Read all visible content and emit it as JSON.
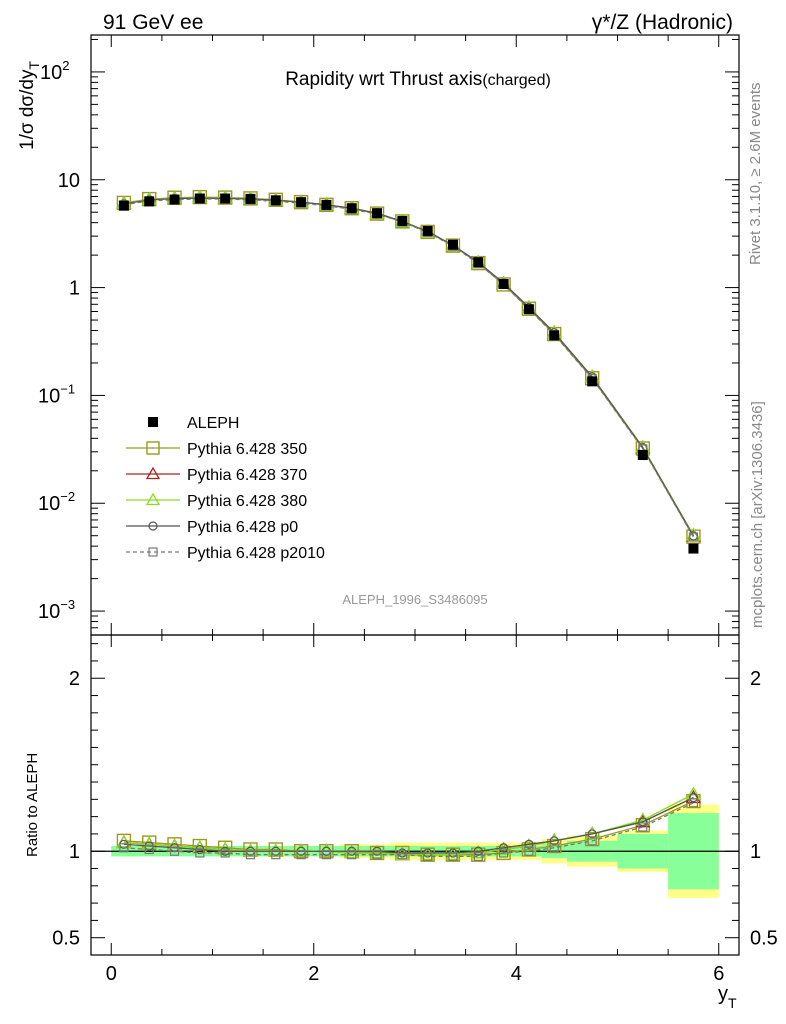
{
  "header": {
    "left": "91 GeV ee",
    "right": "γ*/Z (Hadronic)"
  },
  "side": {
    "rivet": "Rivet 3.1.10, ≥ 2.6M events",
    "mcplots": "mcplots.cern.ch [arXiv:1306.3436]"
  },
  "chart_data": {
    "type": "line",
    "title": "Rapidity wrt Thrust axis",
    "title_sub": "(charged)",
    "watermark": "ALEPH_1996_S3486095",
    "xlabel": "y",
    "xlabel_sub": "T",
    "ylabel": "1/σ dσ/dy",
    "ylabel_sub": "T",
    "ratio_ylabel": "Ratio to ALEPH",
    "xlim": [
      -0.2,
      6.2
    ],
    "ylim": [
      0.0006,
      220
    ],
    "yscale": "log",
    "ratio_ylim": [
      0.4,
      2.25
    ],
    "xticks": [
      "0",
      "2",
      "4",
      "6"
    ],
    "xtick_values": [
      0,
      2,
      4,
      6
    ],
    "yticks_main": [
      {
        "v": 0.001,
        "base": "10",
        "exp": "−3"
      },
      {
        "v": 0.01,
        "base": "10",
        "exp": "−2"
      },
      {
        "v": 0.1,
        "base": "10",
        "exp": "−1"
      },
      {
        "v": 1,
        "base": "1",
        "exp": ""
      },
      {
        "v": 10,
        "base": "10",
        "exp": ""
      },
      {
        "v": 100,
        "base": "10",
        "exp": "2"
      }
    ],
    "yticks_ratio": [
      {
        "v": 0.5,
        "label": "0.5"
      },
      {
        "v": 1,
        "label": "1"
      },
      {
        "v": 2,
        "label": "2"
      }
    ],
    "x": [
      0.125,
      0.375,
      0.625,
      0.875,
      1.125,
      1.375,
      1.625,
      1.875,
      2.125,
      2.375,
      2.625,
      2.875,
      3.125,
      3.375,
      3.625,
      3.875,
      4.125,
      4.375,
      4.75,
      5.25,
      5.75
    ],
    "bins": [
      [
        0,
        0.25
      ],
      [
        0.25,
        0.5
      ],
      [
        0.5,
        0.75
      ],
      [
        0.75,
        1
      ],
      [
        1,
        1.25
      ],
      [
        1.25,
        1.5
      ],
      [
        1.5,
        1.75
      ],
      [
        1.75,
        2
      ],
      [
        2,
        2.25
      ],
      [
        2.25,
        2.5
      ],
      [
        2.5,
        2.75
      ],
      [
        2.75,
        3
      ],
      [
        3,
        3.25
      ],
      [
        3.25,
        3.5
      ],
      [
        3.5,
        3.75
      ],
      [
        3.75,
        4
      ],
      [
        4,
        4.25
      ],
      [
        4.25,
        4.5
      ],
      [
        4.5,
        5
      ],
      [
        5,
        5.5
      ],
      [
        5.5,
        6
      ]
    ],
    "data": {
      "name": "ALEPH",
      "values": [
        5.75,
        6.3,
        6.55,
        6.7,
        6.7,
        6.65,
        6.45,
        6.2,
        5.85,
        5.45,
        4.9,
        4.15,
        3.35,
        2.5,
        1.72,
        1.08,
        0.63,
        0.36,
        0.135,
        0.028,
        0.0038
      ],
      "band_stat": [
        0.03,
        0.03,
        0.03,
        0.03,
        0.03,
        0.03,
        0.03,
        0.03,
        0.03,
        0.03,
        0.03,
        0.03,
        0.03,
        0.03,
        0.03,
        0.03,
        0.03,
        0.04,
        0.06,
        0.1,
        0.22
      ],
      "band_total": [
        0.03,
        0.03,
        0.03,
        0.03,
        0.03,
        0.03,
        0.03,
        0.03,
        0.03,
        0.04,
        0.04,
        0.05,
        0.05,
        0.05,
        0.05,
        0.05,
        0.05,
        0.07,
        0.09,
        0.12,
        0.27
      ]
    },
    "series": [
      {
        "name": "Pythia 6.428 350",
        "color": "#9a9a22",
        "marker": "square",
        "dash": "",
        "ratio": [
          1.06,
          1.05,
          1.04,
          1.03,
          1.02,
          1.01,
          1.01,
          1.0,
          1.0,
          1.0,
          0.99,
          0.99,
          0.98,
          0.98,
          0.98,
          0.99,
          1.01,
          1.03,
          1.07,
          1.15,
          1.29
        ]
      },
      {
        "name": "Pythia 6.428 370",
        "color": "#aa2222",
        "marker": "triangle",
        "dash": "",
        "ratio": [
          1.05,
          1.04,
          1.03,
          1.02,
          1.01,
          1.0,
          1.0,
          1.0,
          1.0,
          0.99,
          0.99,
          0.98,
          0.98,
          0.98,
          0.99,
          1.01,
          1.03,
          1.06,
          1.1,
          1.17,
          1.31
        ]
      },
      {
        "name": "Pythia 6.428 380",
        "color": "#88dd22",
        "marker": "triangle",
        "dash": "",
        "ratio": [
          1.05,
          1.04,
          1.03,
          1.02,
          1.01,
          1.0,
          1.0,
          1.0,
          1.0,
          0.99,
          0.99,
          0.98,
          0.98,
          0.98,
          0.99,
          1.01,
          1.03,
          1.06,
          1.1,
          1.18,
          1.33
        ]
      },
      {
        "name": "Pythia 6.428 p0",
        "color": "#555555",
        "marker": "circle",
        "dash": "",
        "ratio": [
          1.04,
          1.03,
          1.02,
          1.01,
          1.0,
          1.0,
          1.0,
          1.0,
          1.0,
          1.0,
          1.0,
          0.99,
          0.99,
          0.99,
          1.0,
          1.02,
          1.04,
          1.06,
          1.1,
          1.17,
          1.31
        ]
      },
      {
        "name": "Pythia 6.428 p2010",
        "color": "#777777",
        "marker": "square-small",
        "dash": "4,3",
        "ratio": [
          1.02,
          1.01,
          1.0,
          0.99,
          0.99,
          0.98,
          0.98,
          0.98,
          0.98,
          0.98,
          0.98,
          0.98,
          0.97,
          0.97,
          0.97,
          0.99,
          1.0,
          1.02,
          1.06,
          1.14,
          1.28
        ]
      }
    ]
  }
}
